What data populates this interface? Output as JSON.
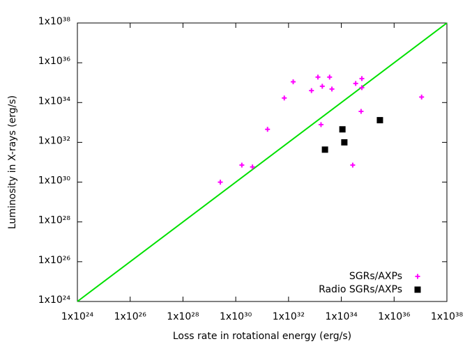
{
  "chart_data": {
    "type": "scatter",
    "xlabel": "Loss rate in rotational energy (erg/s)",
    "ylabel": "Luminosity in X-rays (erg/s)",
    "xscale": "log",
    "yscale": "log",
    "xlim": [
      1e+24,
      1e+38
    ],
    "ylim": [
      1e+24,
      1e+38
    ],
    "xticks": [
      {
        "value": 1e+24,
        "label": "1x10²⁴"
      },
      {
        "value": 1e+26,
        "label": "1x10²⁶"
      },
      {
        "value": 1e+28,
        "label": "1x10²⁸"
      },
      {
        "value": 1e+30,
        "label": "1x10³⁰"
      },
      {
        "value": 1e+32,
        "label": "1x10³²"
      },
      {
        "value": 1e+34,
        "label": "1x10³⁴"
      },
      {
        "value": 1e+36,
        "label": "1x10³⁶"
      },
      {
        "value": 1e+38,
        "label": "1x10³⁸"
      }
    ],
    "yticks": [
      {
        "value": 1e+24,
        "label": "1x10²⁴"
      },
      {
        "value": 1e+26,
        "label": "1x10²⁶"
      },
      {
        "value": 1e+28,
        "label": "1x10²⁸"
      },
      {
        "value": 1e+30,
        "label": "1x10³⁰"
      },
      {
        "value": 1e+32,
        "label": "1x10³²"
      },
      {
        "value": 1e+34,
        "label": "1x10³⁴"
      },
      {
        "value": 1e+36,
        "label": "1x10³⁶"
      },
      {
        "value": 1e+38,
        "label": "1x10³⁸"
      }
    ],
    "legend": "lower right",
    "reference_line": {
      "color": "#00e000",
      "x": [
        1e+24,
        1e+38
      ],
      "values": [
        1e+24,
        1e+38
      ]
    },
    "series": [
      {
        "name": "SGRs/AXPs",
        "color": "#ff00ff",
        "marker": "plus",
        "x": [
          2.6e+29,
          1.7e+30,
          4.3e+30,
          1.6e+31,
          6.9e+31,
          1.5e+32,
          7.4e+32,
          1.3e+33,
          1.7e+33,
          1.9e+33,
          3.6e+33,
          4.4e+33,
          2.7e+34,
          3.5e+34,
          5.6e+34,
          6e+34,
          6e+34,
          1.1e+37
        ],
        "values": [
          1e+30,
          7.2e+30,
          5.8e+30,
          4.5e+32,
          1.7e+34,
          1.1e+35,
          4e+34,
          1.9e+35,
          7.8e+32,
          6.6e+34,
          1.9e+35,
          4.8e+34,
          7.2e+30,
          9.1e+34,
          3.6e+33,
          1.6e+35,
          5.6e+34,
          1.9e+34
        ]
      },
      {
        "name": "Radio SGRs/AXPs",
        "color": "#000000",
        "marker": "square",
        "x": [
          2.4e+33,
          1.1e+34,
          1.3e+34,
          2.9e+35
        ],
        "values": [
          4.3e+31,
          4.5e+32,
          1e+32,
          1.3e+33
        ]
      }
    ]
  }
}
